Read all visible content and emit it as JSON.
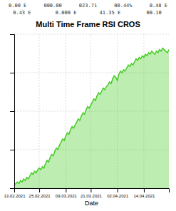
{
  "chart_data": {
    "type": "area",
    "title": "Multi Time Frame RSI CROS",
    "annotations": [
      "0.00 E",
      "000.00",
      "023.71",
      "00.44%",
      "0.48 E",
      "0.43 E",
      "0.000 E",
      "41.35 E",
      "00.10"
    ],
    "x_label": "Date",
    "categories": [
      "13.02.2021",
      null,
      null,
      null,
      null,
      null,
      null,
      null,
      null,
      null,
      null,
      null,
      null,
      null,
      null,
      null,
      "25.02.2021",
      null,
      null,
      null,
      null,
      null,
      null,
      null,
      null,
      null,
      null,
      null,
      null,
      null,
      null,
      null,
      null,
      "09.03.2021",
      null,
      null,
      null,
      null,
      null,
      null,
      null,
      null,
      null,
      null,
      null,
      null,
      null,
      null,
      null,
      "21.03.2021",
      null,
      null,
      null,
      null,
      null,
      null,
      null,
      null,
      null,
      null,
      null,
      null,
      null,
      null,
      null,
      null,
      "02.04.2021",
      null,
      null,
      null,
      null,
      null,
      null,
      null,
      null,
      null,
      null,
      null,
      null,
      null,
      null,
      null,
      null,
      "14.04.2021",
      null,
      null,
      null,
      null,
      null,
      null,
      null,
      null,
      null,
      null,
      null,
      null,
      null,
      null,
      null,
      null
    ],
    "values": [
      0.02,
      0.03,
      0.04,
      0.03,
      0.05,
      0.04,
      0.06,
      0.05,
      0.07,
      0.06,
      0.08,
      0.1,
      0.09,
      0.11,
      0.1,
      0.12,
      0.13,
      0.12,
      0.14,
      0.13,
      0.16,
      0.18,
      0.17,
      0.2,
      0.22,
      0.21,
      0.24,
      0.26,
      0.25,
      0.28,
      0.3,
      0.32,
      0.31,
      0.34,
      0.36,
      0.35,
      0.38,
      0.4,
      0.39,
      0.41,
      0.43,
      0.45,
      0.44,
      0.47,
      0.49,
      0.48,
      0.51,
      0.53,
      0.52,
      0.54,
      0.56,
      0.58,
      0.57,
      0.6,
      0.62,
      0.61,
      0.63,
      0.65,
      0.64,
      0.66,
      0.67,
      0.69,
      0.68,
      0.71,
      0.73,
      0.72,
      0.7,
      0.74,
      0.76,
      0.75,
      0.77,
      0.76,
      0.78,
      0.8,
      0.79,
      0.81,
      0.8,
      0.82,
      0.84,
      0.83,
      0.85,
      0.84,
      0.86,
      0.85,
      0.87,
      0.86,
      0.88,
      0.87,
      0.89,
      0.88,
      0.87,
      0.89,
      0.88,
      0.9,
      0.89,
      0.91,
      0.9,
      0.89,
      0.88,
      0.9
    ],
    "color": "#44cc22",
    "ylim": [
      0,
      1.0
    ],
    "yticks": [
      0.0,
      0.25,
      0.5,
      0.75,
      1.0
    ],
    "grid": true,
    "tick_labels": "x"
  }
}
